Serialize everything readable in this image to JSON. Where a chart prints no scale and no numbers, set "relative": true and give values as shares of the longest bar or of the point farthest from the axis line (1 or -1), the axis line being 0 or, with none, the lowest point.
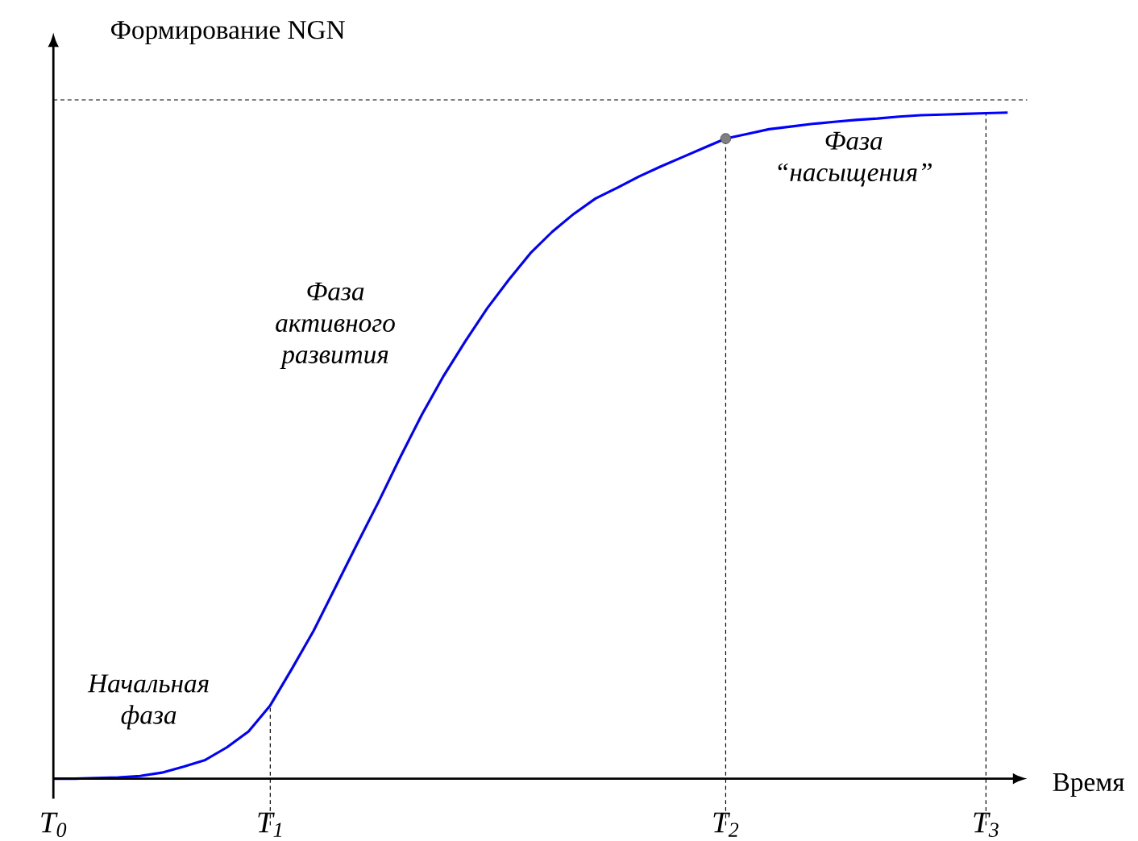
{
  "chart_data": {
    "type": "line",
    "relative": true,
    "xlabel": "Время",
    "ylabel": "Формирование NGN",
    "categories": [
      "T$_{0}$",
      null,
      null,
      null,
      null,
      null,
      null,
      null,
      null,
      null,
      "T$_{1}$",
      null,
      null,
      null,
      null,
      null,
      null,
      null,
      null,
      null,
      null,
      null,
      null,
      null,
      null,
      null,
      null,
      null,
      null,
      null,
      null,
      "T$_{2}$",
      null,
      null,
      null,
      null,
      null,
      null,
      null,
      null,
      null,
      null,
      null,
      "T$_{3}$",
      null
    ],
    "series": [
      {
        "color": "#0000ff",
        "line_style": "solid",
        "values": [
          0,
          0,
          0.001,
          0.002,
          0.004,
          0.009,
          0.018,
          0.028,
          0.047,
          0.071,
          0.11,
          0.165,
          0.222,
          0.287,
          0.352,
          0.416,
          0.483,
          0.547,
          0.605,
          0.657,
          0.706,
          0.749,
          0.789,
          0.821,
          0.848,
          0.871,
          0.887,
          0.904,
          0.919,
          0.933,
          0.947,
          0.961,
          0.968,
          0.975,
          0.979,
          0.983,
          0.986,
          0.989,
          0.991,
          0.994,
          0.996,
          0.997,
          0.998,
          0.999,
          1
        ]
      },
      {
        "type": "scatter",
        "x": [
          "T$_{2}$"
        ],
        "color": "#808080",
        "marker": "circle",
        "values": [
          0.961
        ]
      }
    ],
    "ref_lines": [
      {
        "axis": "x",
        "value": "T$_{1}$",
        "color": "#000000",
        "line_style": "dashed"
      },
      {
        "axis": "x",
        "value": "T$_{2}$",
        "color": "#000000",
        "line_style": "dashed"
      },
      {
        "axis": "x",
        "value": "T$_{3}$",
        "color": "#000000",
        "line_style": "dashed"
      },
      {
        "axis": "y",
        "value": 1.019,
        "color": "#000000",
        "line_style": "dashed"
      }
    ],
    "annotations": [
      "Начальная фаза",
      "Фаза активного развития",
      "Фаза “насыщения”"
    ]
  }
}
